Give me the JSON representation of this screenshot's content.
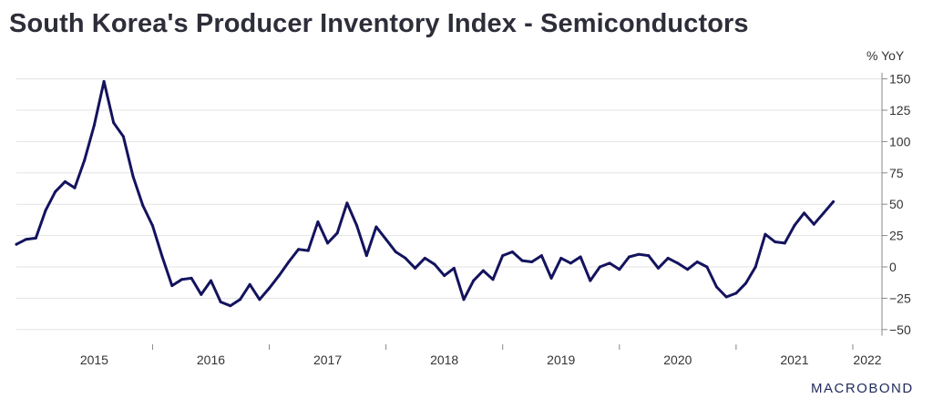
{
  "title": "South Korea's Producer Inventory Index - Semiconductors",
  "unit_label": "% YoY",
  "logo_text": "MACROBOND",
  "colors": {
    "line": "#13135e",
    "grid": "#e3e3e3",
    "axis": "#888888",
    "text": "#333333"
  },
  "chart_data": {
    "type": "line",
    "title": "South Korea's Producer Inventory Index - Semiconductors",
    "ylabel": "% YoY",
    "ylim": [
      -50,
      150
    ],
    "y_ticks": [
      150,
      125,
      100,
      75,
      50,
      25,
      0,
      -25,
      -50
    ],
    "x_tick_labels": [
      "2015",
      "2016",
      "2017",
      "2018",
      "2019",
      "2020",
      "2021",
      "2022"
    ],
    "x_start": "2014-11",
    "x_end": "2022-04",
    "grid": true,
    "series": [
      {
        "values": [
          18,
          22,
          23,
          45,
          60,
          68,
          63,
          85,
          113,
          148,
          115,
          104,
          72,
          49,
          33,
          8,
          -15,
          -10,
          -9,
          -22,
          -11,
          -28,
          -31,
          -26,
          -14,
          -26,
          -17,
          -7,
          4,
          14,
          13,
          36,
          19,
          27,
          51,
          33,
          9,
          32,
          22,
          12,
          7,
          -1,
          7,
          2,
          -7,
          -1,
          -26,
          -11,
          -3,
          -10,
          9,
          12,
          5,
          4,
          9,
          -9,
          7,
          3,
          8,
          -11,
          0,
          3,
          -2,
          8,
          10,
          9,
          -1,
          7,
          3,
          -2,
          4,
          0,
          -16,
          -24,
          -21,
          -13,
          0,
          26,
          20,
          19,
          33,
          43,
          34,
          43,
          52
        ],
        "dates": [
          "2014-11",
          "2014-12",
          "2015-01",
          "2015-02",
          "2015-03",
          "2015-04",
          "2015-05",
          "2015-06",
          "2015-07",
          "2015-08",
          "2015-09",
          "2015-10",
          "2015-11",
          "2015-12",
          "2016-01",
          "2016-02",
          "2016-03",
          "2016-04",
          "2016-05",
          "2016-06",
          "2016-07",
          "2016-08",
          "2016-09",
          "2016-10",
          "2016-11",
          "2016-12",
          "2017-01",
          "2017-02",
          "2017-03",
          "2017-04",
          "2017-05",
          "2017-06",
          "2017-07",
          "2017-08",
          "2017-09",
          "2017-10",
          "2017-11",
          "2017-12",
          "2018-01",
          "2018-02",
          "2018-03",
          "2018-04",
          "2018-05",
          "2018-06",
          "2018-07",
          "2018-08",
          "2018-09",
          "2018-10",
          "2018-11",
          "2018-12",
          "2019-01",
          "2019-02",
          "2019-03",
          "2019-04",
          "2019-05",
          "2019-06",
          "2019-07",
          "2019-08",
          "2019-09",
          "2019-10",
          "2019-11",
          "2019-12",
          "2020-01",
          "2020-02",
          "2020-03",
          "2020-04",
          "2020-05",
          "2020-06",
          "2020-07",
          "2020-08",
          "2020-09",
          "2020-10",
          "2020-11",
          "2020-12",
          "2021-01",
          "2021-02",
          "2021-03",
          "2021-04",
          "2021-05",
          "2021-06",
          "2021-07",
          "2021-08",
          "2021-09",
          "2021-10",
          "2021-11"
        ]
      }
    ]
  }
}
